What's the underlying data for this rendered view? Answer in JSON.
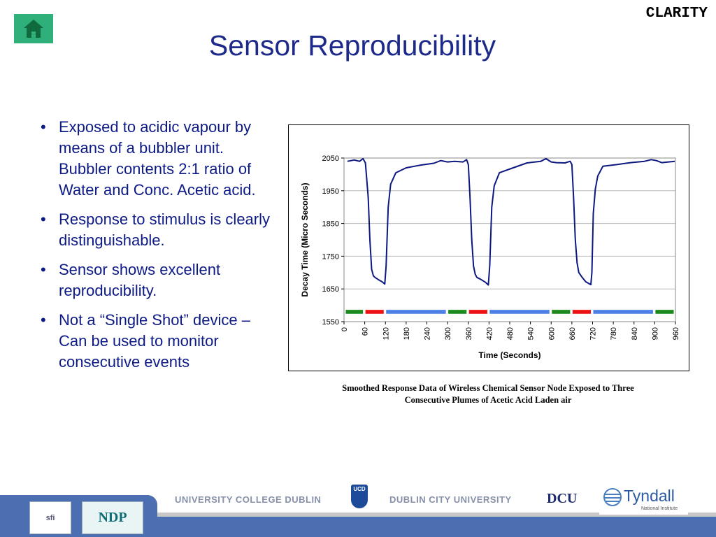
{
  "brand": "CLARITY",
  "title": "Sensor Reproducibility",
  "bullets": [
    "Exposed to acidic vapour by means of a bubbler unit.  Bubbler contents 2:1 ratio of Water and Conc. Acetic acid.",
    "Response to stimulus is clearly distinguishable.",
    "Sensor shows excellent reproducibility.",
    "Not a “Single Shot” device – Can be used to monitor consecutive events"
  ],
  "caption_line1": "Smoothed Response Data of Wireless Chemical Sensor Node Exposed to Three",
  "caption_line2": "Consecutive Plumes of Acetic Acid Laden air",
  "footer": {
    "ucd": "UNIVERSITY COLLEGE DUBLIN",
    "dcu": "DUBLIN CITY UNIVERSITY",
    "dcu_logo": "DCU",
    "tyndall": "Tyndall",
    "tyndall_sub": "National Institute",
    "sfi": "sfi",
    "ndp": "NDP",
    "ucd_crest": "UCD"
  },
  "colors": {
    "line": "#0d1880",
    "green": "#1a8a1a",
    "red": "#ee1111",
    "blue": "#4b80e6",
    "title": "#1d2a8a"
  },
  "chart_data": {
    "type": "line",
    "xlabel": "Time (Seconds)",
    "ylabel": "Decay Time (Micro Seconds)",
    "xlim": [
      0,
      960
    ],
    "ylim": [
      1550,
      2050
    ],
    "xticks": [
      0,
      60,
      120,
      180,
      240,
      300,
      360,
      420,
      480,
      540,
      600,
      660,
      720,
      780,
      840,
      900,
      960
    ],
    "yticks": [
      1550,
      1650,
      1750,
      1850,
      1950,
      2050
    ],
    "grid": "horizontal",
    "series": [
      {
        "x": [
          10,
          30,
          45,
          55,
          62,
          70,
          75,
          80,
          85,
          90,
          100,
          110,
          118,
          122,
          128,
          135,
          150,
          180,
          220,
          260,
          280,
          300,
          320,
          345,
          355,
          360,
          365,
          370,
          375,
          380,
          385,
          395,
          410,
          418,
          422,
          428,
          435,
          450,
          490,
          530,
          570,
          585,
          600,
          615,
          640,
          655,
          660,
          665,
          670,
          675,
          680,
          690,
          700,
          715,
          718,
          722,
          728,
          735,
          750,
          790,
          830,
          870,
          890,
          905,
          920,
          940,
          958
        ],
        "y": [
          2040,
          2044,
          2040,
          2048,
          2035,
          1930,
          1800,
          1710,
          1690,
          1685,
          1678,
          1672,
          1665,
          1720,
          1900,
          1970,
          2005,
          2020,
          2028,
          2034,
          2042,
          2038,
          2040,
          2038,
          2045,
          2030,
          1930,
          1800,
          1720,
          1695,
          1685,
          1680,
          1670,
          1662,
          1720,
          1900,
          1965,
          2005,
          2020,
          2035,
          2040,
          2048,
          2038,
          2036,
          2035,
          2040,
          2030,
          1930,
          1800,
          1730,
          1700,
          1685,
          1672,
          1663,
          1700,
          1880,
          1955,
          1995,
          2025,
          2030,
          2036,
          2040,
          2045,
          2042,
          2036,
          2038,
          2040
        ]
      }
    ],
    "exposure_bars": [
      {
        "start": 5,
        "end": 55,
        "color": "green"
      },
      {
        "start": 62,
        "end": 115,
        "color": "red"
      },
      {
        "start": 122,
        "end": 295,
        "color": "blue"
      },
      {
        "start": 302,
        "end": 355,
        "color": "green"
      },
      {
        "start": 362,
        "end": 415,
        "color": "red"
      },
      {
        "start": 422,
        "end": 595,
        "color": "blue"
      },
      {
        "start": 602,
        "end": 655,
        "color": "green"
      },
      {
        "start": 662,
        "end": 715,
        "color": "red"
      },
      {
        "start": 722,
        "end": 895,
        "color": "blue"
      },
      {
        "start": 902,
        "end": 955,
        "color": "green"
      }
    ],
    "bar_level": 1580
  }
}
